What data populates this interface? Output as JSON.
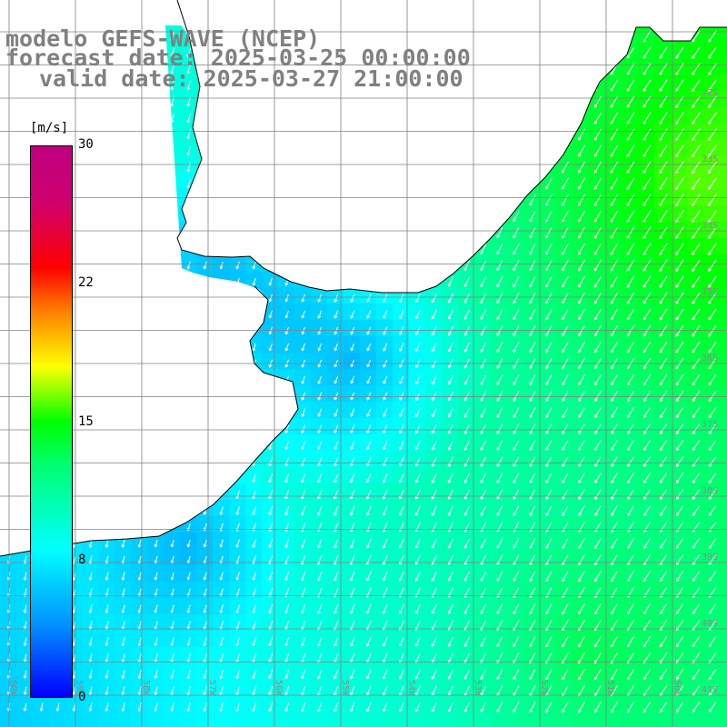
{
  "title": {
    "line1": "modelo GEFS-WAVE (NCEP)",
    "line2": "forecast date: 2025-03-25 00:00:00",
    "line3": "valid date: 2025-03-27 21:00:00"
  },
  "colorbar": {
    "unit": "[m/s]",
    "ticks": [
      "30",
      "22",
      "15",
      "8",
      "0"
    ],
    "tick_values": [
      30,
      22,
      15,
      8,
      0
    ],
    "min": 0,
    "max": 30,
    "colors": [
      "#0000ff",
      "#0090ff",
      "#00ffff",
      "#00ff70",
      "#00ff00",
      "#ffff00",
      "#ff8000",
      "#ff0000",
      "#c00080"
    ]
  },
  "latitude_labels": [
    "32S",
    "33S",
    "34S",
    "35S",
    "36S",
    "37S",
    "38S",
    "39S",
    "40S",
    "41S"
  ],
  "longitude_labels": [
    "60W",
    "59W",
    "58W",
    "57W",
    "56W",
    "55W",
    "54W",
    "53W",
    "52W",
    "51W",
    "50W"
  ],
  "map": {
    "land_color": "#ffffff",
    "coastline_color": "#000000",
    "grid_color": "#808080",
    "arrow_color": "#ffffff",
    "wind_direction": "from north-northeast"
  }
}
